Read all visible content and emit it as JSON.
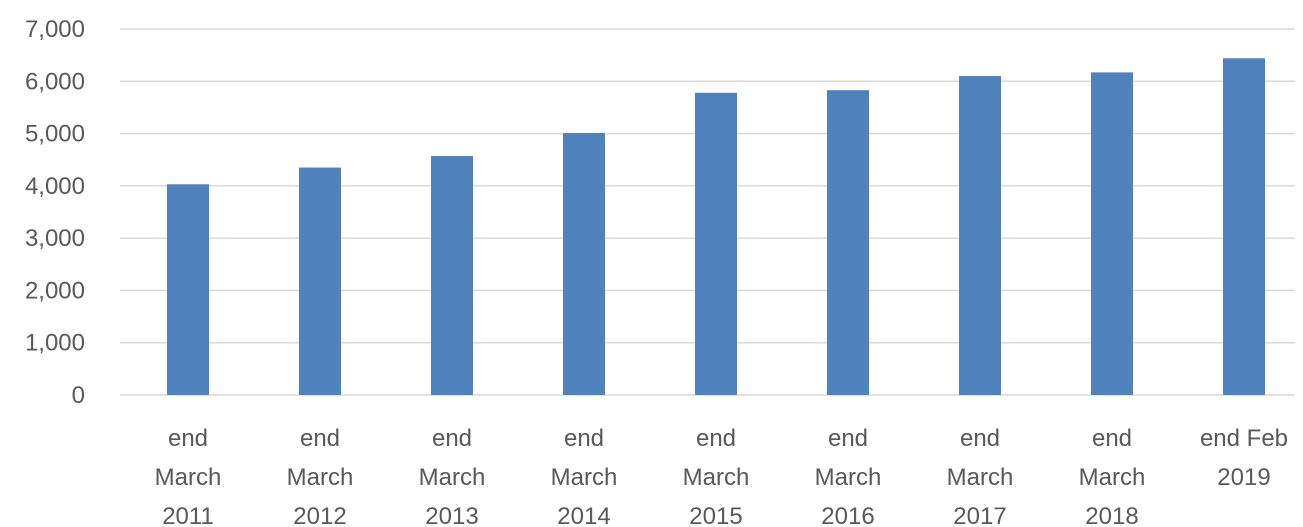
{
  "chart_data": {
    "type": "bar",
    "title": "",
    "xlabel": "",
    "ylabel": "",
    "categories": [
      [
        "end",
        "March",
        "2011"
      ],
      [
        "end",
        "March",
        "2012"
      ],
      [
        "end",
        "March",
        "2013"
      ],
      [
        "end",
        "March",
        "2014"
      ],
      [
        "end",
        "March",
        "2015"
      ],
      [
        "end",
        "March",
        "2016"
      ],
      [
        "end",
        "March",
        "2017"
      ],
      [
        "end",
        "March",
        "2018"
      ],
      [
        "end Feb",
        "2019"
      ]
    ],
    "values": [
      4030,
      4350,
      4570,
      5010,
      5780,
      5830,
      6100,
      6170,
      6440
    ],
    "ylim": [
      0,
      7000
    ],
    "yticks": [
      "0",
      "1,000",
      "2,000",
      "3,000",
      "4,000",
      "5,000",
      "6,000",
      "7,000"
    ],
    "grid": true,
    "legend": "none",
    "bar_color": "#4f81bd"
  }
}
